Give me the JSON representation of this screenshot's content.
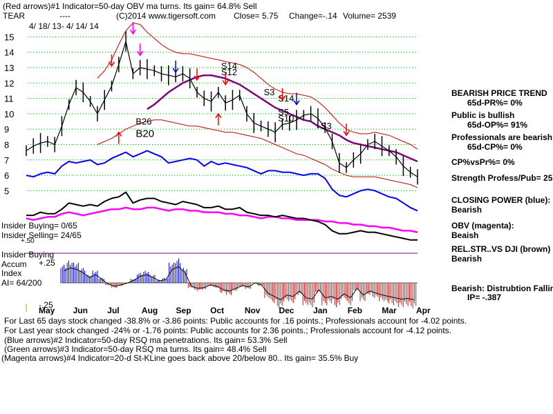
{
  "header": {
    "line1": "(Red arrows)#1 Indicator=50-day OBV ma turns. Its gain= 64.8% Sell",
    "ticker": "TEAR",
    "dashes": "----",
    "site": "(C)2014 www.tigersoft.com",
    "close": "Close=  5.75",
    "change": "Change=-.14",
    "volume": "Volume= 2539",
    "date_range": "4/ 18/ 13-  4/ 14/ 14"
  },
  "colors": {
    "price": "#000000",
    "ma": "#800080",
    "band": "#cc0000",
    "closing_power": "#0000ff",
    "obv": "#ff00ff",
    "relstr": "#000000",
    "grid": "#009900",
    "accum_pos": "#0000cc",
    "accum_neg": "#b22222"
  },
  "chart_data": {
    "type": "line",
    "title": "TEAR",
    "x_months": [
      "May",
      "Jun",
      "Jul",
      "Aug",
      "Sep",
      "Oct",
      "Nov",
      "Dec",
      "Jan",
      "Feb",
      "Mar",
      "Apr"
    ],
    "y_ticks": [
      5,
      6,
      7,
      8,
      9,
      10,
      11,
      12,
      13,
      14,
      15
    ],
    "ylim": [
      4.3,
      15.6
    ],
    "price": [
      7.6,
      7.9,
      8.1,
      8.2,
      8.0,
      9.2,
      10.6,
      11.7,
      11.4,
      10.8,
      10.0,
      10.9,
      11.8,
      13.2,
      14.7,
      12.6,
      13.0,
      12.9,
      12.8,
      12.6,
      12.5,
      12.4,
      12.6,
      12.3,
      11.4,
      11.0,
      10.8,
      11.4,
      10.7,
      10.9,
      11.2,
      10.0,
      9.4,
      9.2,
      9.0,
      8.8,
      9.3,
      9.4,
      9.6,
      9.9,
      10.0,
      9.7,
      9.1,
      8.2,
      6.8,
      6.5,
      7.0,
      7.4,
      8.0,
      8.2,
      7.9,
      7.6,
      7.2,
      6.6,
      6.2,
      5.9
    ],
    "ma50": [
      null,
      null,
      null,
      null,
      null,
      null,
      null,
      null,
      null,
      null,
      null,
      null,
      null,
      null,
      null,
      null,
      null,
      10.3,
      10.6,
      11.0,
      11.4,
      11.7,
      12.0,
      12.2,
      12.4,
      12.5,
      12.5,
      12.4,
      12.3,
      12.1,
      11.9,
      11.6,
      11.3,
      11.0,
      10.7,
      10.4,
      10.2,
      10.0,
      9.8,
      9.6,
      9.5,
      9.2,
      9.0,
      8.8,
      8.6,
      8.3,
      8.1,
      8.0,
      7.9,
      7.8,
      7.7,
      7.6,
      7.5,
      7.3,
      7.1,
      6.9
    ],
    "upper_band": [
      null,
      null,
      null,
      null,
      null,
      null,
      null,
      null,
      null,
      null,
      12.3,
      12.8,
      13.5,
      14.5,
      15.4,
      15.9,
      15.8,
      15.3,
      14.9,
      14.5,
      14.2,
      14.0,
      13.9,
      13.9,
      13.8,
      13.7,
      13.6,
      13.5,
      13.4,
      13.3,
      13.2,
      13.0,
      12.7,
      12.3,
      11.9,
      11.6,
      11.4,
      11.3,
      11.3,
      11.2,
      11.1,
      10.8,
      10.4,
      9.9,
      9.4,
      9.0,
      8.8,
      8.7,
      8.7,
      8.8,
      8.7,
      8.6,
      8.4,
      8.2,
      8.0,
      7.7
    ],
    "lower_band": [
      null,
      null,
      null,
      null,
      null,
      null,
      null,
      null,
      null,
      null,
      8.0,
      8.2,
      8.4,
      8.7,
      9.0,
      9.2,
      9.4,
      9.5,
      9.6,
      9.6,
      9.5,
      9.4,
      9.3,
      9.2,
      9.2,
      9.1,
      9.0,
      8.9,
      8.8,
      8.8,
      8.7,
      8.6,
      8.5,
      8.4,
      8.2,
      8.0,
      7.8,
      7.6,
      7.4,
      7.3,
      7.1,
      6.9,
      6.7,
      6.4,
      6.2,
      6.0,
      5.9,
      5.9,
      5.9,
      5.9,
      5.8,
      5.7,
      5.6,
      5.5,
      5.4,
      5.2
    ],
    "closing_power": [
      6.0,
      5.9,
      6.1,
      6.2,
      6.1,
      6.6,
      6.9,
      6.8,
      6.9,
      7.0,
      6.7,
      6.8,
      7.1,
      7.3,
      7.5,
      7.2,
      7.4,
      7.6,
      7.4,
      7.2,
      6.8,
      6.9,
      7.0,
      7.1,
      7.0,
      6.6,
      6.9,
      6.7,
      6.8,
      6.7,
      6.6,
      6.5,
      6.3,
      6.1,
      6.3,
      6.3,
      6.2,
      6.2,
      6.1,
      6.0,
      6.1,
      6.1,
      5.8,
      5.1,
      4.7,
      4.6,
      4.8,
      5.0,
      5.1,
      5.0,
      4.8,
      4.6,
      4.5,
      4.2,
      3.9,
      3.7
    ],
    "obv": [
      3.2,
      3.1,
      3.2,
      3.3,
      3.3,
      3.5,
      3.6,
      3.5,
      3.4,
      3.5,
      3.6,
      3.7,
      3.8,
      3.8,
      3.9,
      3.8,
      3.8,
      3.9,
      3.9,
      3.8,
      3.7,
      3.8,
      3.8,
      3.7,
      3.7,
      3.6,
      3.6,
      3.6,
      3.5,
      3.5,
      3.4,
      3.4,
      3.3,
      3.2,
      3.3,
      3.3,
      3.2,
      3.2,
      3.1,
      3.1,
      3.1,
      3.1,
      3.0,
      3.0,
      2.9,
      2.9,
      2.8,
      2.8,
      2.7,
      2.7,
      2.6,
      2.6,
      2.5,
      2.4,
      2.4,
      2.3
    ],
    "rel_str": [
      3.4,
      3.4,
      3.6,
      3.5,
      3.5,
      3.8,
      4.2,
      4.1,
      4.0,
      4.1,
      4.0,
      4.3,
      4.5,
      4.6,
      4.9,
      4.2,
      4.4,
      4.5,
      4.5,
      4.3,
      4.2,
      4.1,
      4.3,
      4.2,
      4.1,
      3.9,
      3.9,
      4.0,
      3.8,
      3.8,
      3.9,
      3.6,
      3.5,
      3.4,
      3.4,
      3.3,
      3.4,
      3.3,
      3.2,
      3.2,
      3.1,
      3.0,
      2.8,
      2.4,
      2.2,
      2.2,
      2.3,
      2.4,
      2.3,
      2.3,
      2.2,
      2.1,
      2.0,
      1.9,
      1.8,
      1.8
    ],
    "accum_index": [
      0.18,
      0.22,
      0.2,
      0.15,
      0.08,
      0.12,
      0.05,
      -0.02,
      -0.05,
      -0.03,
      0.0,
      0.04,
      0.1,
      0.12,
      0.08,
      0.03,
      0.05,
      0.2,
      0.24,
      0.15,
      -0.05,
      -0.08,
      -0.07,
      -0.03,
      -0.05,
      -0.1,
      -0.12,
      -0.08,
      -0.04,
      -0.06,
      0.0,
      -0.03,
      -0.15,
      -0.2,
      -0.25,
      -0.18,
      -0.2,
      -0.12,
      -0.22,
      -0.24,
      -0.1,
      -0.22,
      -0.2,
      -0.24,
      -0.16,
      -0.22,
      -0.08,
      -0.18,
      -0.12,
      -0.15,
      -0.18,
      -0.2,
      -0.22,
      -0.24,
      -0.23,
      -0.25
    ],
    "accum_ylim": [
      -0.3,
      0.3
    ],
    "annotations": [
      {
        "label": "B26",
        "x": 15,
        "y": 9.3
      },
      {
        "label": "B20",
        "x": 15,
        "y": 8.5
      },
      {
        "label": "S14",
        "x": 27,
        "y": 12.9
      },
      {
        "label": "S12",
        "x": 27,
        "y": 12.5
      },
      {
        "label": "S3",
        "x": 33,
        "y": 11.2
      },
      {
        "label": "S14",
        "x": 35,
        "y": 10.8
      },
      {
        "label": "S5",
        "x": 35,
        "y": 9.9
      },
      {
        "label": "S10",
        "x": 35,
        "y": 9.5
      },
      {
        "label": "S3",
        "x": 41,
        "y": 9.0
      }
    ]
  },
  "sidebar": {
    "trend_title": "BEARISH PRICE TREND",
    "pr": "65d-PR%= 0%",
    "public": "Public is bullish",
    "op": "65d-OP%= 91%",
    "pros": "Professionals are bearish",
    "cp": "65d-CP%= 0%",
    "cpvspr": "CP%vsPr%=  0%",
    "strength": "Strength Profess/Pub= 25",
    "closing_power": "CLOSING POWER (blue):",
    "closing_power_val": "Bearish",
    "obv": "OBV (magenta):",
    "obv_val": "Beaish",
    "relstr": "REL.STR..VS DJI (brown)",
    "relstr_val": "Bearish",
    "distribution": "Bearish: Distrubtion Falling",
    "ip": "IP= -.387"
  },
  "insider": {
    "buying": "Insider Buying= 0/65",
    "selling": "Insider Selling= 24/65",
    "buying2": "Insider Buying",
    "accum": "Accum",
    "index": "Index",
    "ai": "AI= 64/200",
    "p50": "+.50",
    "p25": "+.25",
    "m25": "-.25"
  },
  "footer": {
    "l1": "For Last 65 days stock changed -38.8% or -3.86 points:  Public accounts for  .16 points.;  Professionals account for -4.02 points.",
    "l2": "For Last year stock changed -24% or -1.76 points:  Public accounts for  2.36 points.;  Professionals account for -4.12 points.",
    "l3": "(Blue arrows)#2 Indicator=50-day RSQ ma penetrations. Its gain= 53.3% Sell",
    "l4": "(Green arrows)#3 Indicator=50-day RSQ ma turns. Its gain= 48.4% Sell",
    "l5": "(Magenta arrows)#4 Indicator=20-d St-KLine goes back above 20/below 80.. Its gain= 35.5% Buy"
  }
}
